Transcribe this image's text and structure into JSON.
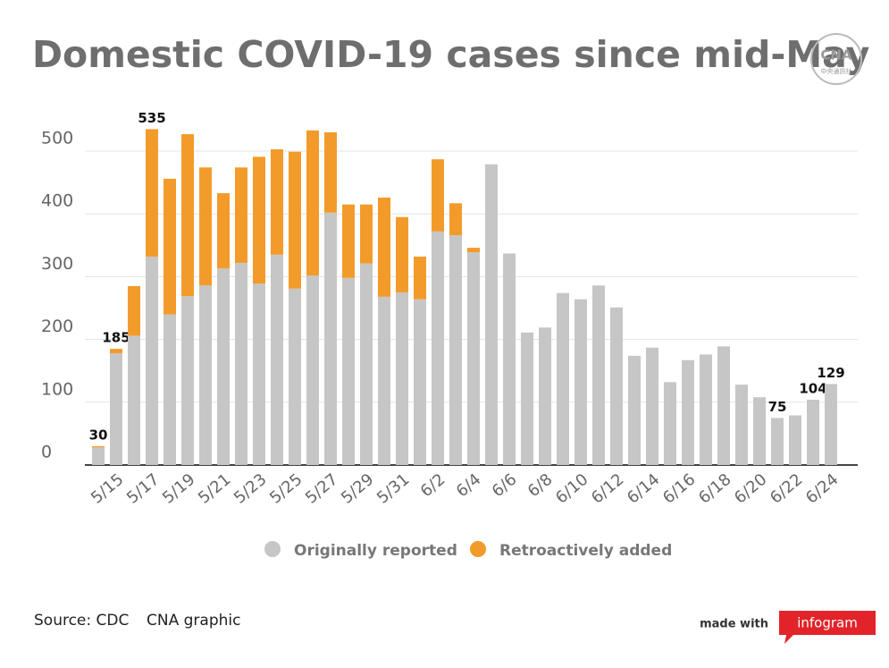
{
  "chart_data": {
    "type": "stacked_bar",
    "title": "Domestic COVID-19 cases since mid-May",
    "logo": "CNA",
    "logo_subtitle": "中央通訊社",
    "source": "Source: CDC",
    "credit": "CNA graphic",
    "made_with": "made with",
    "brand": "infogram",
    "categories": [
      null,
      "5/15",
      null,
      "5/17",
      null,
      "5/19",
      null,
      "5/21",
      null,
      "5/23",
      null,
      "5/25",
      null,
      "5/27",
      null,
      "5/29",
      null,
      "5/31",
      null,
      "6/2",
      null,
      "6/4",
      null,
      "6/6",
      null,
      "6/8",
      null,
      "6/10",
      null,
      "6/12",
      null,
      "6/14",
      null,
      "6/16",
      null,
      "6/18",
      null,
      "6/20",
      null,
      "6/22",
      null,
      "6/24"
    ],
    "series": [
      {
        "name": "Originally reported",
        "color": "#c6c6c6",
        "values": [
          28,
          178,
          206,
          332,
          240,
          269,
          286,
          313,
          322,
          289,
          335,
          281,
          302,
          402,
          298,
          321,
          268,
          275,
          264,
          372,
          366,
          339,
          479,
          337,
          211,
          219,
          274,
          264,
          286,
          251,
          174,
          187,
          132,
          167,
          176,
          189,
          128,
          108,
          75,
          79,
          104,
          129
        ]
      },
      {
        "name": "Retroactively added",
        "color": "#f29b2b",
        "values": [
          2,
          7,
          79,
          203,
          216,
          258,
          188,
          120,
          152,
          202,
          168,
          218,
          231,
          128,
          117,
          94,
          158,
          120,
          68,
          115,
          51,
          7,
          0,
          0,
          0,
          0,
          0,
          0,
          0,
          0,
          0,
          0,
          0,
          0,
          0,
          0,
          0,
          0,
          0,
          0,
          0,
          0
        ]
      }
    ],
    "data_labels": [
      30,
      185,
      null,
      535,
      null,
      null,
      null,
      null,
      null,
      null,
      null,
      null,
      null,
      null,
      null,
      null,
      null,
      null,
      null,
      null,
      null,
      null,
      null,
      null,
      null,
      null,
      null,
      null,
      null,
      null,
      null,
      null,
      null,
      null,
      null,
      null,
      null,
      null,
      75,
      null,
      104,
      129
    ],
    "ylim": [
      0,
      500
    ],
    "yticks": [
      0,
      100,
      200,
      300,
      400,
      500
    ],
    "grid": true
  }
}
